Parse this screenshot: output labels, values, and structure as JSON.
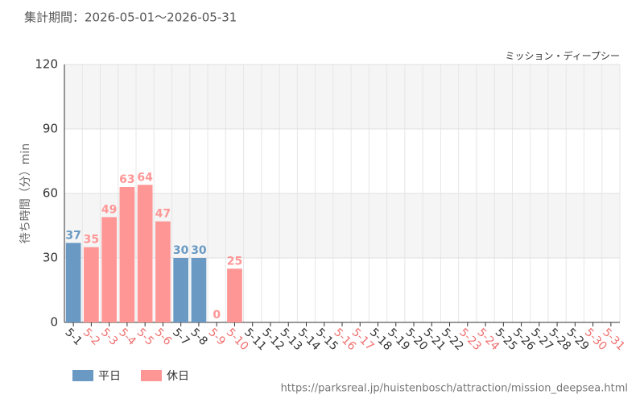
{
  "chart_data": {
    "type": "bar",
    "title": "集計期間：2026-05-01～2026-05-31",
    "subtitle": "ミッション・ディープシー",
    "y_label": "待ち時間（分）min",
    "source": "https://parksreal.jp/huistenbosch/attraction/mission_deepsea.html",
    "categories": [
      "5-1",
      "5-2",
      "5-3",
      "5-4",
      "5-5",
      "5-6",
      "5-7",
      "5-8",
      "5-9",
      "5-10",
      "5-11",
      "5-12",
      "5-13",
      "5-14",
      "5-15",
      "5-16",
      "5-17",
      "5-18",
      "5-19",
      "5-20",
      "5-21",
      "5-22",
      "5-23",
      "5-24",
      "5-25",
      "5-26",
      "5-27",
      "5-28",
      "5-29",
      "5-30",
      "5-31"
    ],
    "category_series": [
      0,
      1,
      1,
      1,
      1,
      1,
      0,
      0,
      1,
      1,
      0,
      0,
      0,
      0,
      0,
      1,
      1,
      0,
      0,
      0,
      0,
      0,
      1,
      1,
      0,
      0,
      0,
      0,
      0,
      1,
      1
    ],
    "series": [
      {
        "name": "平日",
        "color": "#6a9ac4",
        "label_color": "#333333",
        "values": [
          37,
          null,
          null,
          null,
          null,
          null,
          30,
          30,
          null,
          null,
          null,
          null,
          null,
          null,
          null,
          null,
          null,
          null,
          null,
          null,
          null,
          null,
          null,
          null,
          null,
          null,
          null,
          null,
          null,
          null,
          null
        ]
      },
      {
        "name": "休日",
        "color": "#ff9696",
        "label_color": "#f07070",
        "values": [
          null,
          35,
          49,
          63,
          64,
          47,
          null,
          null,
          0,
          25,
          null,
          null,
          null,
          null,
          null,
          null,
          null,
          null,
          null,
          null,
          null,
          null,
          null,
          null,
          null,
          null,
          null,
          null,
          null,
          null,
          null
        ]
      }
    ],
    "ylim": [
      0,
      120
    ],
    "yticks": [
      0,
      30,
      60,
      90,
      120
    ],
    "grid": true
  }
}
